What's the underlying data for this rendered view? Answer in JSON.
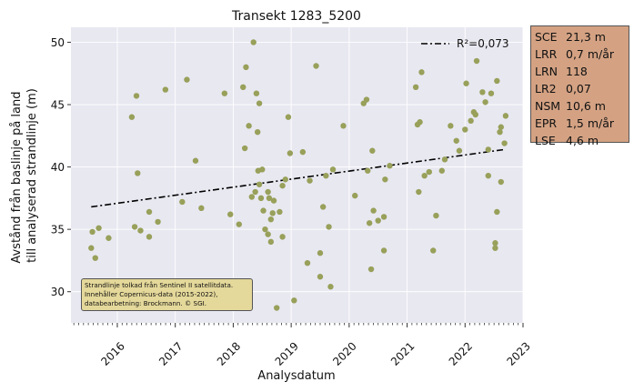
{
  "colors": {
    "plot_background": "#e8e8f1",
    "grid": "#ffffff",
    "points": "#98a05a",
    "trend_line": "#000000",
    "stats_box": "#d4a283",
    "credit_box": "#e4d89a"
  },
  "chart_data": {
    "type": "scatter",
    "title": "Transekt 1283_5200",
    "xlabel": "Analysdatum",
    "ylabel_lines": [
      "Avstånd från baslinje på land",
      "till analyserad strandlinje (m)"
    ],
    "x_ticks": [
      "2016",
      "2017",
      "2018",
      "2019",
      "2020",
      "2021",
      "2022",
      "2023"
    ],
    "y_ticks": [
      "30",
      "35",
      "40",
      "45",
      "50"
    ],
    "xlim": [
      2015.2,
      2023.0
    ],
    "ylim": [
      27.5,
      51.2
    ],
    "grid": true,
    "legend": {
      "position": "top-right",
      "label": "R²=0,073"
    },
    "trend": {
      "x": [
        2015.55,
        2022.68
      ],
      "y": [
        36.8,
        41.4
      ]
    },
    "points": [
      [
        2015.55,
        33.5
      ],
      [
        2015.57,
        34.8
      ],
      [
        2015.62,
        32.7
      ],
      [
        2015.68,
        35.1
      ],
      [
        2015.85,
        34.3
      ],
      [
        2016.25,
        44.0
      ],
      [
        2016.3,
        35.2
      ],
      [
        2016.33,
        45.7
      ],
      [
        2016.35,
        39.5
      ],
      [
        2016.4,
        34.9
      ],
      [
        2016.55,
        36.4
      ],
      [
        2016.55,
        34.4
      ],
      [
        2016.7,
        35.6
      ],
      [
        2016.83,
        46.2
      ],
      [
        2017.12,
        37.2
      ],
      [
        2017.2,
        47.0
      ],
      [
        2017.35,
        40.5
      ],
      [
        2017.45,
        36.7
      ],
      [
        2017.85,
        45.9
      ],
      [
        2017.95,
        36.2
      ],
      [
        2018.1,
        35.4
      ],
      [
        2018.17,
        46.4
      ],
      [
        2018.2,
        41.5
      ],
      [
        2018.22,
        48.0
      ],
      [
        2018.27,
        43.3
      ],
      [
        2018.32,
        37.6
      ],
      [
        2018.35,
        50.0
      ],
      [
        2018.38,
        38.0
      ],
      [
        2018.4,
        45.9
      ],
      [
        2018.43,
        39.7
      ],
      [
        2018.45,
        45.1
      ],
      [
        2018.42,
        42.8
      ],
      [
        2018.45,
        38.6
      ],
      [
        2018.5,
        39.8
      ],
      [
        2018.48,
        37.5
      ],
      [
        2018.52,
        36.5
      ],
      [
        2018.55,
        35.0
      ],
      [
        2018.6,
        34.6
      ],
      [
        2018.62,
        37.5
      ],
      [
        2018.6,
        38.0
      ],
      [
        2018.65,
        34.0
      ],
      [
        2018.65,
        35.8
      ],
      [
        2018.68,
        36.3
      ],
      [
        2018.7,
        37.3
      ],
      [
        2018.75,
        28.7
      ],
      [
        2018.8,
        36.4
      ],
      [
        2018.85,
        38.5
      ],
      [
        2018.85,
        34.4
      ],
      [
        2018.9,
        39.0
      ],
      [
        2018.95,
        44.0
      ],
      [
        2018.98,
        41.1
      ],
      [
        2019.05,
        29.3
      ],
      [
        2019.2,
        41.2
      ],
      [
        2019.28,
        32.3
      ],
      [
        2019.32,
        38.9
      ],
      [
        2019.43,
        48.1
      ],
      [
        2019.5,
        33.1
      ],
      [
        2019.5,
        31.2
      ],
      [
        2019.55,
        36.8
      ],
      [
        2019.6,
        39.3
      ],
      [
        2019.65,
        35.2
      ],
      [
        2019.68,
        30.4
      ],
      [
        2019.72,
        39.8
      ],
      [
        2019.9,
        43.3
      ],
      [
        2020.1,
        37.7
      ],
      [
        2020.25,
        45.1
      ],
      [
        2020.3,
        45.4
      ],
      [
        2020.32,
        39.7
      ],
      [
        2020.35,
        35.5
      ],
      [
        2020.38,
        31.8
      ],
      [
        2020.4,
        41.3
      ],
      [
        2020.42,
        36.5
      ],
      [
        2020.5,
        35.7
      ],
      [
        2020.6,
        36.0
      ],
      [
        2020.6,
        33.3
      ],
      [
        2020.62,
        39.0
      ],
      [
        2020.7,
        40.1
      ],
      [
        2021.15,
        46.4
      ],
      [
        2021.18,
        43.4
      ],
      [
        2021.2,
        38.0
      ],
      [
        2021.25,
        47.6
      ],
      [
        2021.22,
        43.6
      ],
      [
        2021.3,
        39.3
      ],
      [
        2021.38,
        39.6
      ],
      [
        2021.45,
        33.3
      ],
      [
        2021.5,
        36.1
      ],
      [
        2021.6,
        39.7
      ],
      [
        2021.65,
        40.6
      ],
      [
        2021.75,
        43.3
      ],
      [
        2021.85,
        42.1
      ],
      [
        2021.9,
        41.3
      ],
      [
        2022.0,
        43.0
      ],
      [
        2022.02,
        46.7
      ],
      [
        2022.1,
        43.7
      ],
      [
        2022.15,
        44.4
      ],
      [
        2022.18,
        44.2
      ],
      [
        2022.2,
        48.5
      ],
      [
        2022.3,
        46.0
      ],
      [
        2022.35,
        45.2
      ],
      [
        2022.4,
        39.3
      ],
      [
        2022.45,
        45.9
      ],
      [
        2022.4,
        41.4
      ],
      [
        2022.52,
        33.9
      ],
      [
        2022.52,
        33.5
      ],
      [
        2022.55,
        36.4
      ],
      [
        2022.55,
        46.9
      ],
      [
        2022.6,
        42.8
      ],
      [
        2022.62,
        43.2
      ],
      [
        2022.62,
        38.8
      ],
      [
        2022.68,
        41.9
      ],
      [
        2022.7,
        44.1
      ]
    ]
  },
  "stats": [
    {
      "key": "SCE",
      "value": "21,3 m"
    },
    {
      "key": "LRR",
      "value": "0,7 m/år"
    },
    {
      "key": "LRN",
      "value": "118"
    },
    {
      "key": "LR2",
      "value": "0,07"
    },
    {
      "key": "NSM",
      "value": "10,6 m"
    },
    {
      "key": "EPR",
      "value": "1,5 m/år"
    },
    {
      "key": "LSE",
      "value": "4,6 m"
    }
  ],
  "credit": {
    "line1": "Strandlinje tolkad från Sentinel II satellitdata.",
    "line2": "Innehåller Copernicus-data (2015-2022),",
    "line3": "databearbetning: Brockmann. © SGI."
  }
}
